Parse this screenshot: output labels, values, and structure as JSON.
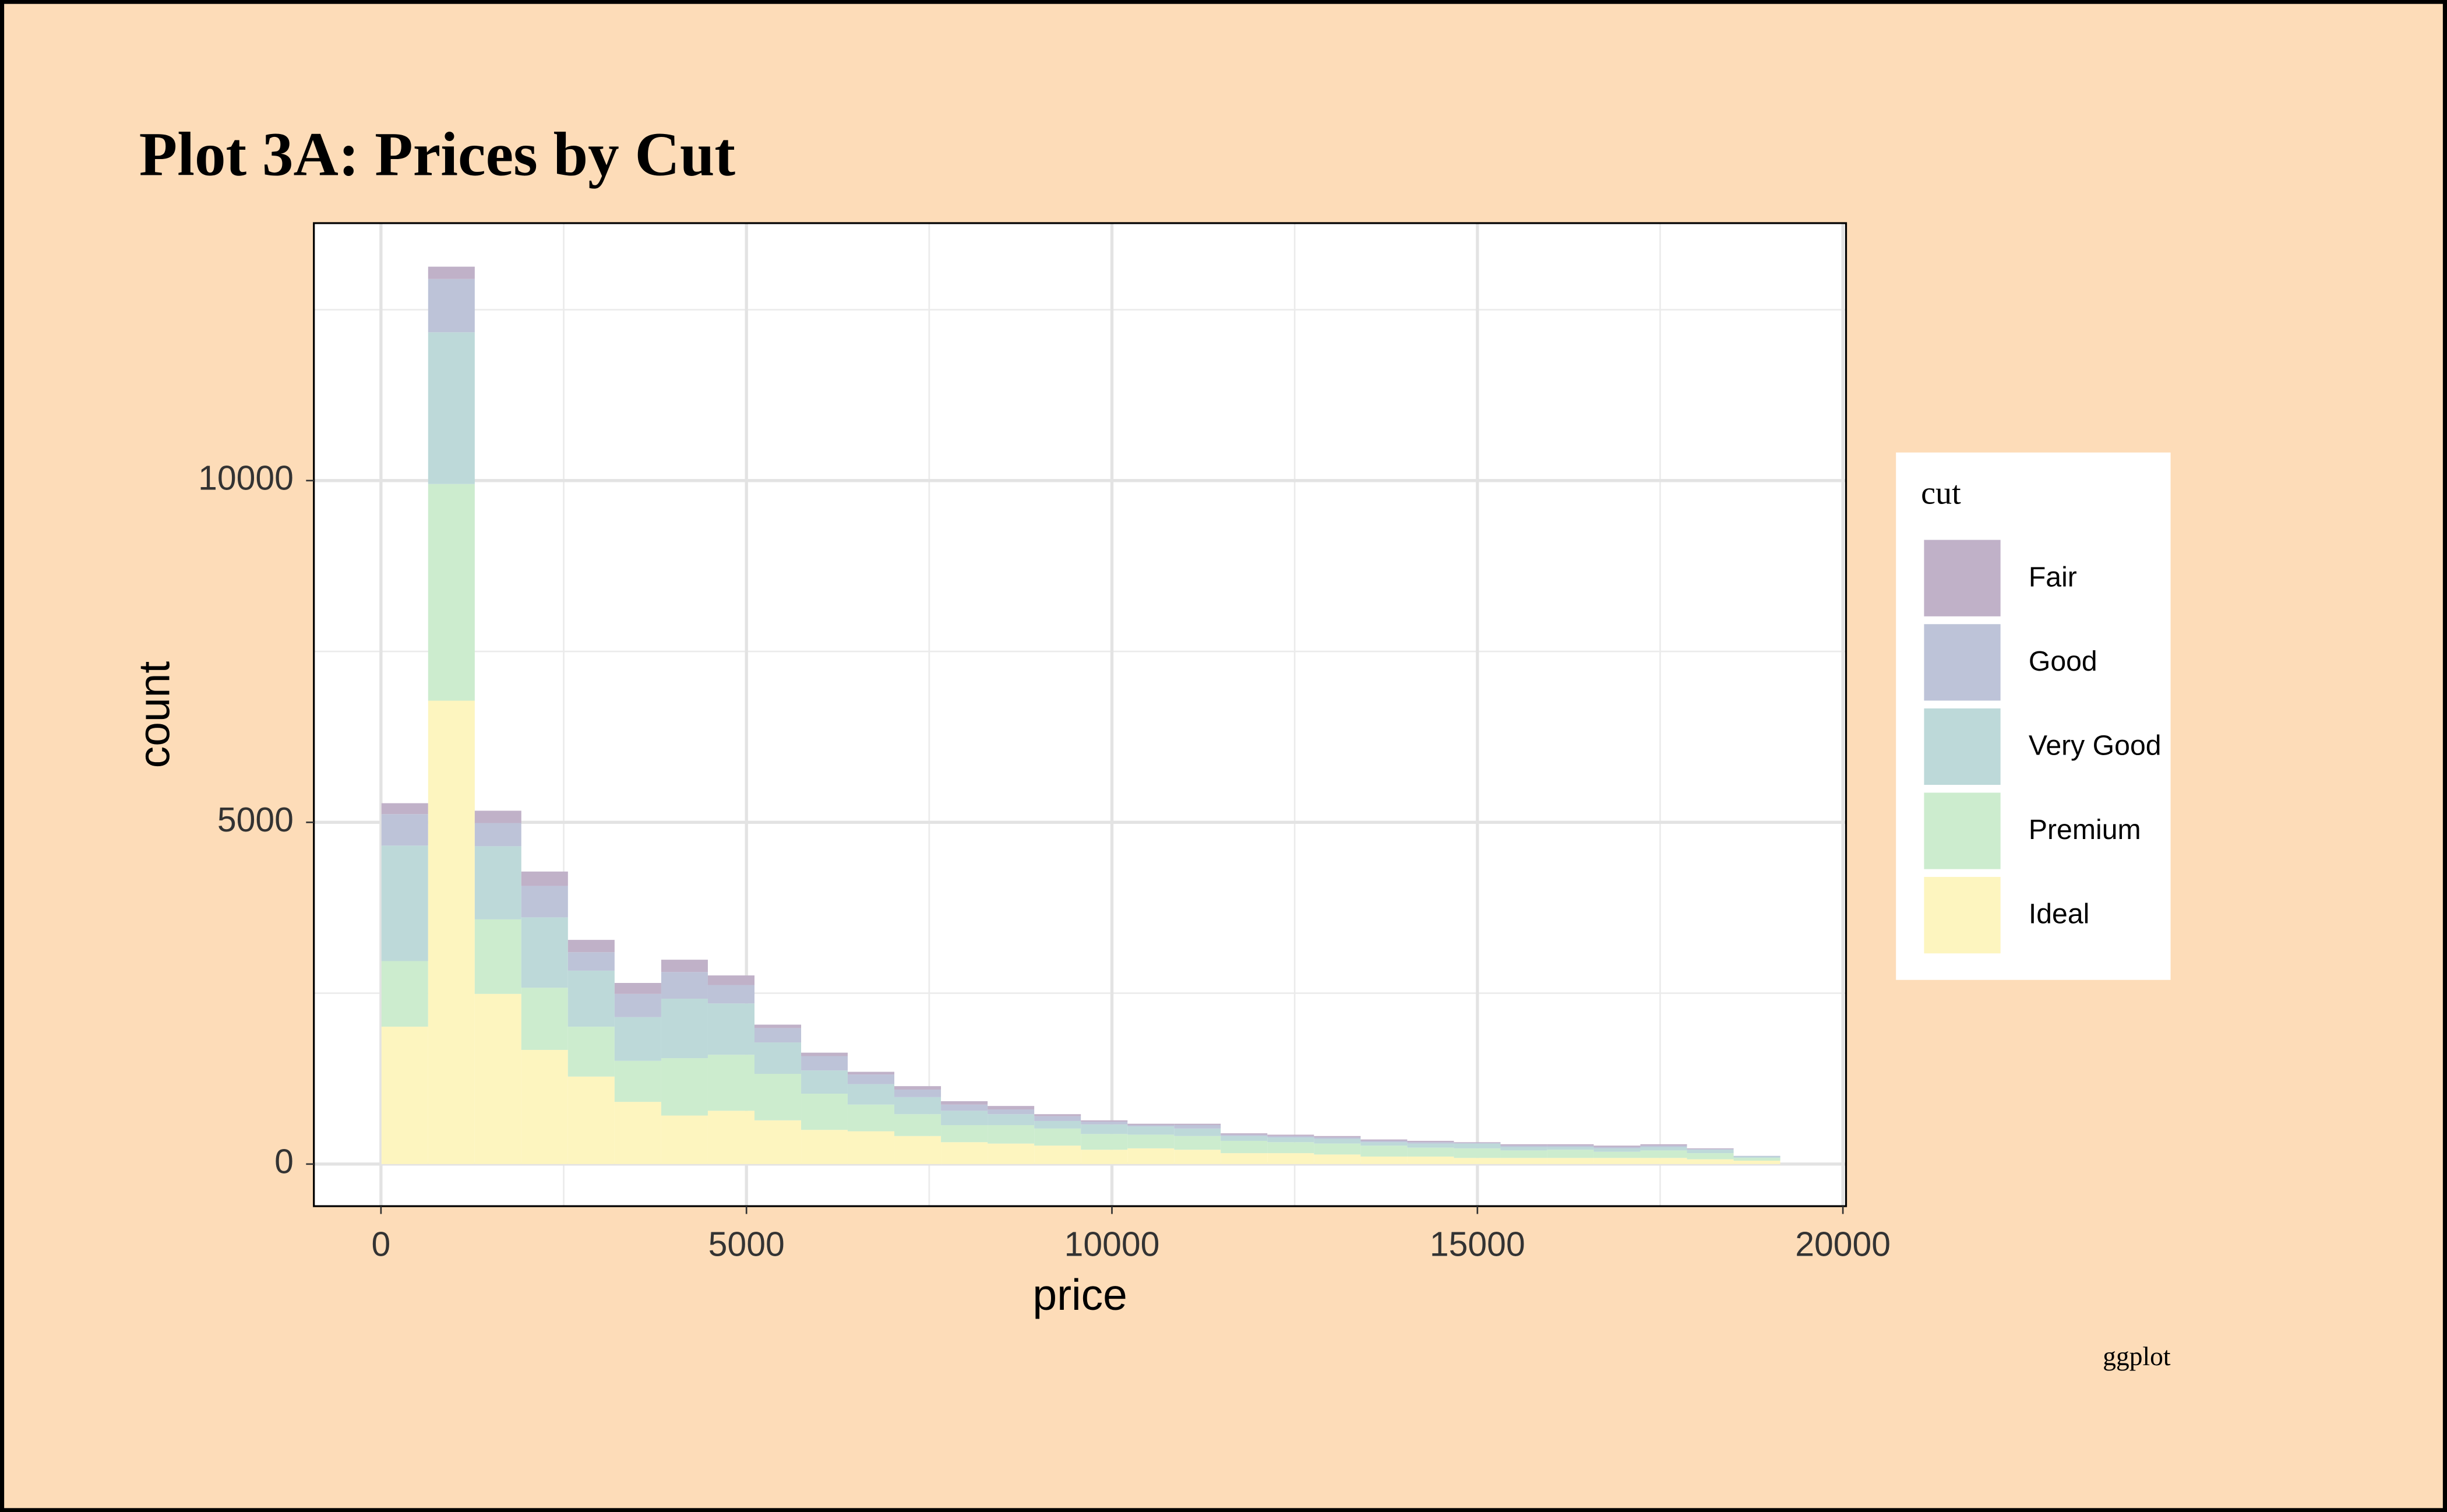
{
  "chart_data": {
    "type": "histogram",
    "title": "Plot 3A: Prices by Cut",
    "x_label": "price",
    "y_label": "count",
    "caption": "ggplot",
    "legend_title": "cut",
    "legend_position": "right",
    "grid": true,
    "stacked": true,
    "bins": [
      7,
      645,
      1283,
      1920,
      2558,
      3196,
      3834,
      4472,
      5110,
      5748,
      6385,
      7023,
      7661,
      8299,
      8937,
      9575,
      10213,
      10851,
      11488,
      12126,
      12764,
      13402,
      14040,
      14678,
      15316,
      15953,
      16591,
      17229,
      17867,
      18505,
      19143
    ],
    "series": [
      {
        "name": "Fair",
        "color": "#c0b1c8",
        "values": [
          160,
          180,
          180,
          210,
          180,
          160,
          180,
          140,
          50,
          50,
          40,
          50,
          50,
          50,
          30,
          20,
          20,
          20,
          20,
          20,
          20,
          20,
          20,
          10,
          20,
          20,
          20,
          20,
          10,
          0
        ]
      },
      {
        "name": "Good",
        "color": "#bdc3d8",
        "values": [
          460,
          780,
          340,
          460,
          270,
          340,
          390,
          270,
          210,
          210,
          140,
          110,
          90,
          70,
          70,
          40,
          20,
          50,
          20,
          20,
          20,
          20,
          20,
          10,
          20,
          20,
          20,
          20,
          10,
          10
        ]
      },
      {
        "name": "Very Good",
        "color": "#bdd9d9",
        "values": [
          1690,
          2220,
          1070,
          1030,
          820,
          640,
          870,
          750,
          460,
          340,
          300,
          250,
          210,
          160,
          110,
          140,
          120,
          110,
          70,
          70,
          70,
          50,
          60,
          70,
          50,
          40,
          50,
          50,
          50,
          20
        ]
      },
      {
        "name": "Premium",
        "color": "#ccecce",
        "values": [
          960,
          3170,
          1090,
          910,
          730,
          600,
          840,
          820,
          680,
          530,
          390,
          320,
          250,
          270,
          250,
          230,
          200,
          200,
          180,
          160,
          160,
          160,
          130,
          140,
          110,
          120,
          90,
          110,
          90,
          40
        ]
      },
      {
        "name": "Ideal",
        "color": "#fdf5bf",
        "values": [
          2010,
          6780,
          2490,
          1670,
          1280,
          910,
          710,
          780,
          640,
          500,
          480,
          410,
          320,
          300,
          270,
          210,
          230,
          210,
          160,
          160,
          140,
          110,
          110,
          90,
          90,
          90,
          90,
          90,
          70,
          50
        ]
      }
    ],
    "xlim": [
      -918,
      20043
    ],
    "xticks": [
      0,
      5000,
      10000,
      15000,
      20000
    ],
    "ylim": [
      -616,
      13767
    ],
    "yticks": [
      0,
      5000,
      10000
    ]
  }
}
